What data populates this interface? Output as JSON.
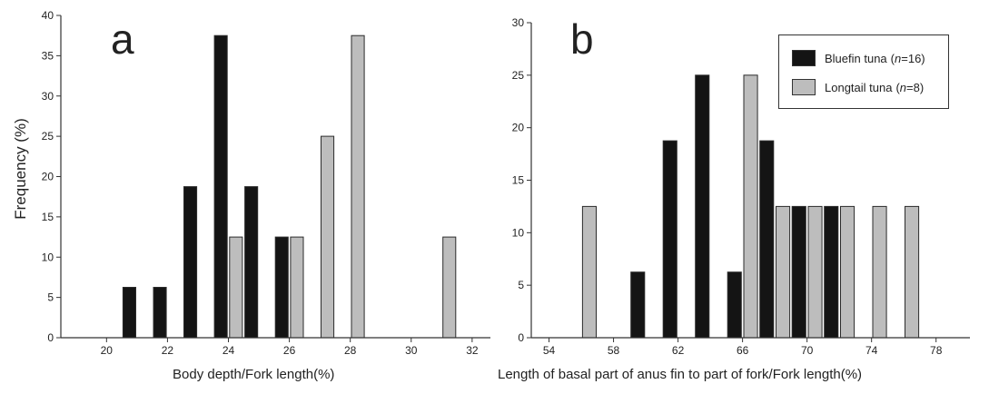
{
  "colors": {
    "bluefin": "#141414",
    "longtail": "#bdbdbd",
    "axis": "#333333",
    "bar_stroke": "#2b2b2b"
  },
  "y_axis_title": "Frequency (%)",
  "legend": {
    "bluefin": {
      "name": "Bluefin tuna",
      "n_prefix": "(",
      "n_italic": "n",
      "n_suffix": "=16)"
    },
    "longtail": {
      "name": "Longtail tuna",
      "n_prefix": "(",
      "n_italic": "n",
      "n_suffix": "=8)"
    }
  },
  "chart_data": [
    {
      "type": "bar",
      "panel_label": "a",
      "xlabel": "Body depth/Fork length(%)",
      "ylabel": "Frequency (%)",
      "xlim": [
        18.5,
        32.6
      ],
      "ylim": [
        0,
        40
      ],
      "xticks": [
        20,
        22,
        24,
        26,
        28,
        30,
        32
      ],
      "yticks": [
        0,
        5,
        10,
        15,
        20,
        25,
        30,
        35,
        40
      ],
      "bar_width": 0.42,
      "series": [
        {
          "name": "Bluefin tuna",
          "color_key": "bluefin",
          "x": [
            20.75,
            21.75,
            22.75,
            23.75,
            24.75,
            25.75
          ],
          "values": [
            6.25,
            6.25,
            18.75,
            37.5,
            18.75,
            12.5
          ]
        },
        {
          "name": "Longtail tuna",
          "color_key": "longtail",
          "x": [
            24.25,
            26.25,
            27.25,
            28.25,
            31.25
          ],
          "values": [
            12.5,
            12.5,
            25,
            37.5,
            12.5
          ]
        }
      ]
    },
    {
      "type": "bar",
      "panel_label": "b",
      "xlabel": "Length of basal part of anus fin to part of fork/Fork length(%)",
      "ylabel": "",
      "xlim": [
        52.9,
        80.1
      ],
      "ylim": [
        0,
        30
      ],
      "xticks": [
        54,
        58,
        62,
        66,
        70,
        74,
        78
      ],
      "yticks": [
        0,
        5,
        10,
        15,
        20,
        25,
        30
      ],
      "bar_width": 0.85,
      "series": [
        {
          "name": "Bluefin tuna",
          "color_key": "bluefin",
          "x": [
            59.5,
            61.5,
            63.5,
            65.5,
            67.5,
            69.5,
            71.5
          ],
          "values": [
            6.25,
            18.75,
            25,
            6.25,
            18.75,
            12.5,
            12.5
          ]
        },
        {
          "name": "Longtail tuna",
          "color_key": "longtail",
          "x": [
            56.5,
            66.5,
            68.5,
            70.5,
            72.5,
            74.5,
            76.5
          ],
          "values": [
            12.5,
            25,
            12.5,
            12.5,
            12.5,
            12.5,
            12.5
          ]
        }
      ]
    }
  ]
}
